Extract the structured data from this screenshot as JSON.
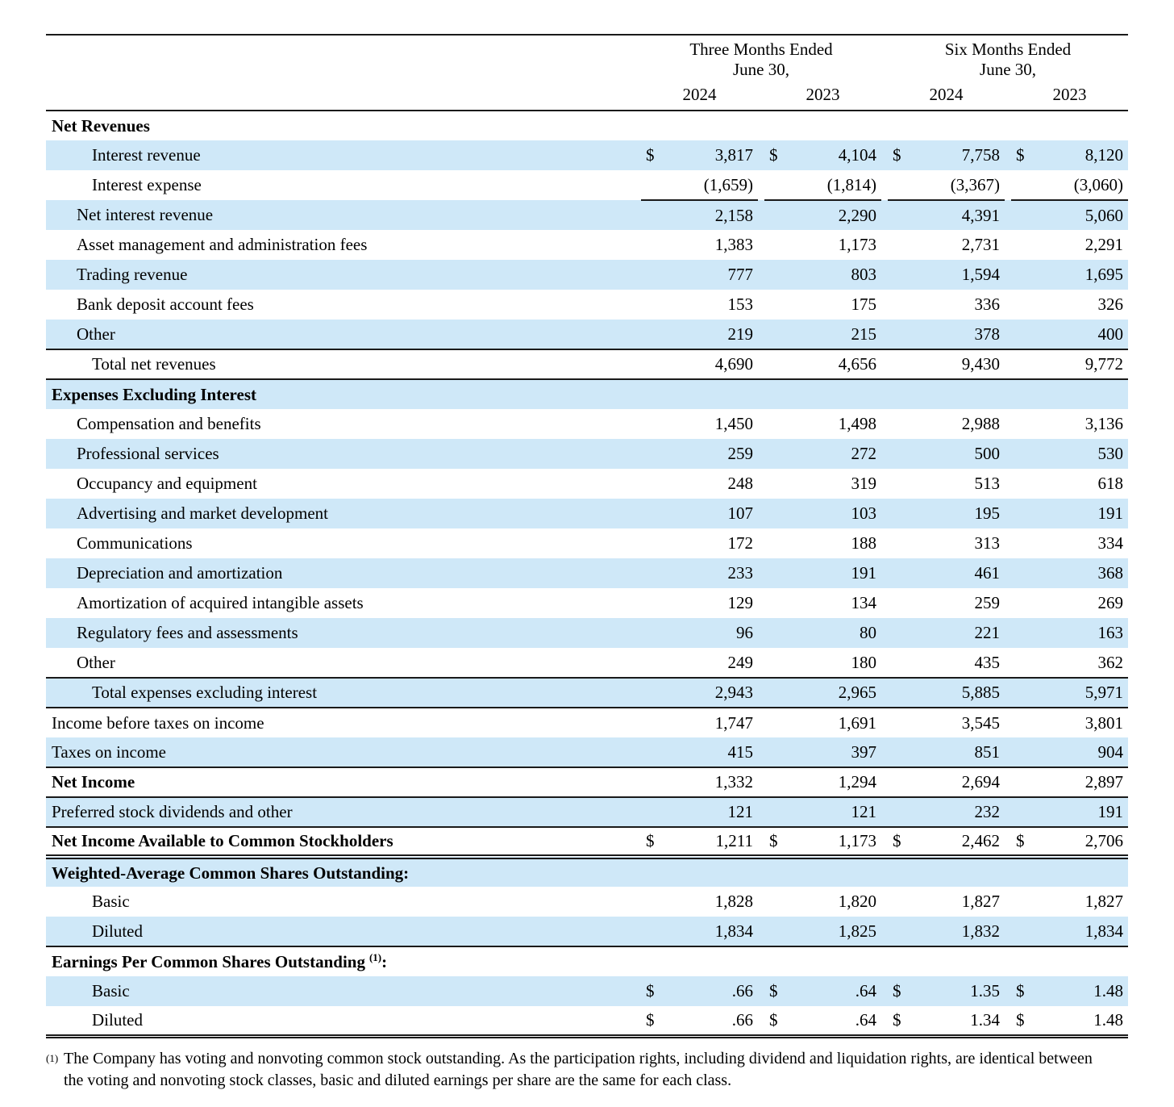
{
  "document": {
    "kind": "income-statement",
    "colors": {
      "row_highlight": "#cfe8f8",
      "rule": "#1a1a1a",
      "text": "#000000"
    },
    "periods": [
      {
        "title": "Three Months Ended",
        "subtitle": "June 30,",
        "years": [
          "2024",
          "2023"
        ]
      },
      {
        "title": "Six Months Ended",
        "subtitle": "June 30,",
        "years": [
          "2024",
          "2023"
        ]
      }
    ],
    "rows": [
      {
        "label": "Net Revenues",
        "indent": 0,
        "bold": true,
        "shaded": false,
        "dollar": false,
        "values": [
          "",
          "",
          "",
          ""
        ],
        "rule": ""
      },
      {
        "label": "Interest revenue",
        "indent": 2,
        "bold": false,
        "shaded": true,
        "dollar": true,
        "values": [
          "3,817",
          "4,104",
          "7,758",
          "8,120"
        ],
        "rule": ""
      },
      {
        "label": "Interest expense",
        "indent": 2,
        "bold": false,
        "shaded": false,
        "dollar": false,
        "values": [
          "(1,659)",
          "(1,814)",
          "(3,367)",
          "(3,060)"
        ],
        "rule": "values-underline"
      },
      {
        "label": "Net interest revenue",
        "indent": 1,
        "bold": false,
        "shaded": true,
        "dollar": false,
        "values": [
          "2,158",
          "2,290",
          "4,391",
          "5,060"
        ],
        "rule": ""
      },
      {
        "label": "Asset management and administration fees",
        "indent": 1,
        "bold": false,
        "shaded": false,
        "dollar": false,
        "values": [
          "1,383",
          "1,173",
          "2,731",
          "2,291"
        ],
        "rule": ""
      },
      {
        "label": "Trading revenue",
        "indent": 1,
        "bold": false,
        "shaded": true,
        "dollar": false,
        "values": [
          "777",
          "803",
          "1,594",
          "1,695"
        ],
        "rule": ""
      },
      {
        "label": "Bank deposit account fees",
        "indent": 1,
        "bold": false,
        "shaded": false,
        "dollar": false,
        "values": [
          "153",
          "175",
          "336",
          "326"
        ],
        "rule": ""
      },
      {
        "label": "Other",
        "indent": 1,
        "bold": false,
        "shaded": true,
        "dollar": false,
        "values": [
          "219",
          "215",
          "378",
          "400"
        ],
        "rule": ""
      },
      {
        "label": "Total net revenues",
        "indent": 2,
        "bold": false,
        "shaded": false,
        "dollar": false,
        "values": [
          "4,690",
          "4,656",
          "9,430",
          "9,772"
        ],
        "rule": "above-below"
      },
      {
        "label": "Expenses Excluding Interest",
        "indent": 0,
        "bold": true,
        "shaded": true,
        "dollar": false,
        "values": [
          "",
          "",
          "",
          ""
        ],
        "rule": ""
      },
      {
        "label": "Compensation and benefits",
        "indent": 1,
        "bold": false,
        "shaded": false,
        "dollar": false,
        "values": [
          "1,450",
          "1,498",
          "2,988",
          "3,136"
        ],
        "rule": ""
      },
      {
        "label": "Professional services",
        "indent": 1,
        "bold": false,
        "shaded": true,
        "dollar": false,
        "values": [
          "259",
          "272",
          "500",
          "530"
        ],
        "rule": ""
      },
      {
        "label": "Occupancy and equipment",
        "indent": 1,
        "bold": false,
        "shaded": false,
        "dollar": false,
        "values": [
          "248",
          "319",
          "513",
          "618"
        ],
        "rule": ""
      },
      {
        "label": "Advertising and market development",
        "indent": 1,
        "bold": false,
        "shaded": true,
        "dollar": false,
        "values": [
          "107",
          "103",
          "195",
          "191"
        ],
        "rule": ""
      },
      {
        "label": "Communications",
        "indent": 1,
        "bold": false,
        "shaded": false,
        "dollar": false,
        "values": [
          "172",
          "188",
          "313",
          "334"
        ],
        "rule": ""
      },
      {
        "label": "Depreciation and amortization",
        "indent": 1,
        "bold": false,
        "shaded": true,
        "dollar": false,
        "values": [
          "233",
          "191",
          "461",
          "368"
        ],
        "rule": ""
      },
      {
        "label": "Amortization of acquired intangible assets",
        "indent": 1,
        "bold": false,
        "shaded": false,
        "dollar": false,
        "values": [
          "129",
          "134",
          "259",
          "269"
        ],
        "rule": ""
      },
      {
        "label": "Regulatory fees and assessments",
        "indent": 1,
        "bold": false,
        "shaded": true,
        "dollar": false,
        "values": [
          "96",
          "80",
          "221",
          "163"
        ],
        "rule": ""
      },
      {
        "label": "Other",
        "indent": 1,
        "bold": false,
        "shaded": false,
        "dollar": false,
        "values": [
          "249",
          "180",
          "435",
          "362"
        ],
        "rule": ""
      },
      {
        "label": "Total expenses excluding interest",
        "indent": 2,
        "bold": false,
        "shaded": true,
        "dollar": false,
        "values": [
          "2,943",
          "2,965",
          "5,885",
          "5,971"
        ],
        "rule": "above-below"
      },
      {
        "label": "Income before taxes on income",
        "indent": 0,
        "bold": false,
        "shaded": false,
        "dollar": false,
        "values": [
          "1,747",
          "1,691",
          "3,545",
          "3,801"
        ],
        "rule": ""
      },
      {
        "label": "Taxes on income",
        "indent": 0,
        "bold": false,
        "shaded": true,
        "dollar": false,
        "values": [
          "415",
          "397",
          "851",
          "904"
        ],
        "rule": "below"
      },
      {
        "label": "Net Income",
        "indent": 0,
        "bold": true,
        "shaded": false,
        "dollar": false,
        "values": [
          "1,332",
          "1,294",
          "2,694",
          "2,897"
        ],
        "rule": "below"
      },
      {
        "label": "Preferred stock dividends and other",
        "indent": 0,
        "bold": false,
        "shaded": true,
        "dollar": false,
        "values": [
          "121",
          "121",
          "232",
          "191"
        ],
        "rule": "below"
      },
      {
        "label": "Net Income Available to Common Stockholders",
        "indent": 0,
        "bold": true,
        "shaded": false,
        "dollar": true,
        "values": [
          "1,211",
          "1,173",
          "2,462",
          "2,706"
        ],
        "rule": "below-double"
      },
      {
        "label": "Weighted-Average Common Shares Outstanding:",
        "indent": 0,
        "bold": true,
        "shaded": true,
        "dollar": false,
        "values": [
          "",
          "",
          "",
          ""
        ],
        "rule": ""
      },
      {
        "label": "Basic",
        "indent": 2,
        "bold": false,
        "shaded": false,
        "dollar": false,
        "values": [
          "1,828",
          "1,820",
          "1,827",
          "1,827"
        ],
        "rule": ""
      },
      {
        "label": "Diluted",
        "indent": 2,
        "bold": false,
        "shaded": true,
        "dollar": false,
        "values": [
          "1,834",
          "1,825",
          "1,832",
          "1,834"
        ],
        "rule": "below"
      },
      {
        "label": "Earnings Per Common Shares Outstanding",
        "sup": "(1)",
        "suffix": ":",
        "indent": 0,
        "bold": true,
        "shaded": false,
        "dollar": false,
        "values": [
          "",
          "",
          "",
          ""
        ],
        "rule": ""
      },
      {
        "label": "Basic",
        "indent": 2,
        "bold": false,
        "shaded": true,
        "dollar": true,
        "values": [
          ".66",
          ".64",
          "1.35",
          "1.48"
        ],
        "rule": ""
      },
      {
        "label": "Diluted",
        "indent": 2,
        "bold": false,
        "shaded": false,
        "dollar": true,
        "values": [
          ".66",
          ".64",
          "1.34",
          "1.48"
        ],
        "rule": "below-thick"
      }
    ],
    "footnote": {
      "marker": "(1)",
      "text": "The Company has voting and nonvoting common stock outstanding. As the participation rights, including dividend and liquidation rights, are identical between the voting and nonvoting stock classes, basic and diluted earnings per share are the same for each class."
    }
  }
}
